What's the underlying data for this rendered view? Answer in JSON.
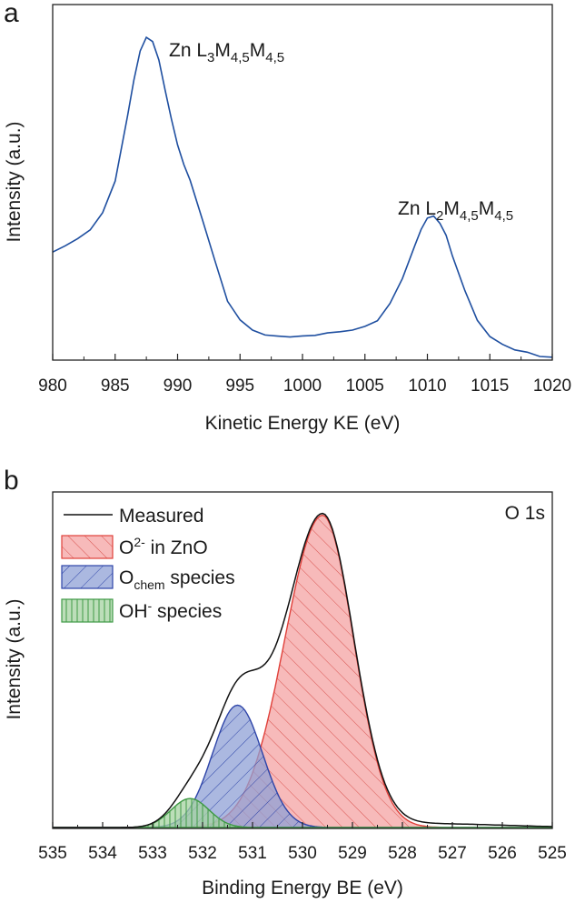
{
  "chart_data": [
    {
      "panel": "a",
      "type": "line",
      "xlabel": "Kinetic Energy KE (eV)",
      "ylabel": "Intensity (a.u.)",
      "xlim": [
        980,
        1020
      ],
      "ylim": [
        0,
        1
      ],
      "x_ticks": [
        980,
        985,
        990,
        995,
        1000,
        1005,
        1010,
        1015,
        1020
      ],
      "y_ticks_labeled": false,
      "line_color": "#1f4fa0",
      "annotations": [
        {
          "base": "Zn L",
          "sub1": "3",
          "mid": "M",
          "sub2": "4,5",
          "mid2": "M",
          "sub3": "4,5",
          "x": 988.0,
          "y": 0.99
        },
        {
          "base": "Zn L",
          "sub1": "2",
          "mid": "M",
          "sub2": "4,5",
          "mid2": "M",
          "sub3": "4,5",
          "x": 1010.5,
          "y": 0.46
        }
      ],
      "series": [
        {
          "x": [
            980,
            981,
            982,
            983,
            984,
            985,
            986,
            986.5,
            987,
            987.5,
            988,
            988.5,
            989,
            989.5,
            990,
            990.5,
            991,
            992,
            993,
            994,
            995,
            996,
            997,
            998,
            999,
            1000,
            1001,
            1002,
            1003,
            1004,
            1005,
            1006,
            1007,
            1008,
            1009,
            1009.5,
            1010,
            1010.5,
            1011,
            1011.5,
            1012,
            1013,
            1014,
            1015,
            1016,
            1017,
            1018,
            1019,
            1020
          ],
          "y": [
            0.33,
            0.35,
            0.37,
            0.4,
            0.45,
            0.55,
            0.75,
            0.86,
            0.95,
            0.99,
            0.98,
            0.92,
            0.83,
            0.74,
            0.66,
            0.6,
            0.55,
            0.43,
            0.3,
            0.18,
            0.12,
            0.09,
            0.075,
            0.07,
            0.07,
            0.07,
            0.075,
            0.08,
            0.085,
            0.09,
            0.1,
            0.12,
            0.17,
            0.25,
            0.35,
            0.4,
            0.435,
            0.44,
            0.42,
            0.38,
            0.32,
            0.21,
            0.12,
            0.07,
            0.045,
            0.03,
            0.02,
            0.01,
            0.005
          ]
        }
      ]
    },
    {
      "panel": "b",
      "type": "area",
      "xlabel": "Binding Energy BE (eV)",
      "ylabel": "Intensity (a.u.)",
      "xlim": [
        535,
        525
      ],
      "x_reversed": true,
      "ylim": [
        0,
        1
      ],
      "x_ticks": [
        535,
        534,
        533,
        532,
        531,
        530,
        529,
        528,
        527,
        526,
        525
      ],
      "y_ticks_labeled": false,
      "corner_label": "O 1s",
      "legend": {
        "placement": "top-left",
        "entries": [
          {
            "key": "measured",
            "parts": [
              {
                "t": "Measured",
                "s": ""
              }
            ]
          },
          {
            "key": "o2",
            "parts": [
              {
                "t": "O",
                "s": ""
              },
              {
                "t": "2-",
                "s": "sup"
              },
              {
                "t": " in ZnO",
                "s": ""
              }
            ]
          },
          {
            "key": "ochem",
            "parts": [
              {
                "t": "O",
                "s": ""
              },
              {
                "t": "chem",
                "s": "sub"
              },
              {
                "t": " species",
                "s": ""
              }
            ]
          },
          {
            "key": "oh",
            "parts": [
              {
                "t": "OH",
                "s": ""
              },
              {
                "t": "-",
                "s": "sup"
              },
              {
                "t": " species",
                "s": ""
              }
            ]
          }
        ]
      },
      "colors": {
        "measured": "#111111",
        "o2_fill": "#f4a3a3",
        "o2_line": "#e0403a",
        "ochem_fill": "#8fa0d6",
        "ochem_line": "#2d44a8",
        "oh_fill": "#a6d3a1",
        "oh_line": "#3f9a45"
      },
      "components": [
        {
          "key": "o2",
          "center": 529.6,
          "height": 0.97,
          "sigma_left": 0.75,
          "sigma_right": 0.62
        },
        {
          "key": "ochem",
          "center": 531.3,
          "height": 0.38,
          "sigma_left": 0.5,
          "sigma_right": 0.5
        },
        {
          "key": "oh",
          "center": 532.25,
          "height": 0.09,
          "sigma_left": 0.38,
          "sigma_right": 0.38
        }
      ]
    }
  ]
}
